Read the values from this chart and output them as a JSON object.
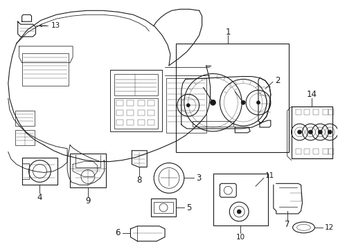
{
  "background_color": "#ffffff",
  "line_color": "#1a1a1a",
  "line_width": 0.8,
  "thin_line": 0.5,
  "label_fontsize": 7.5,
  "figsize": [
    4.89,
    3.6
  ],
  "dpi": 100
}
